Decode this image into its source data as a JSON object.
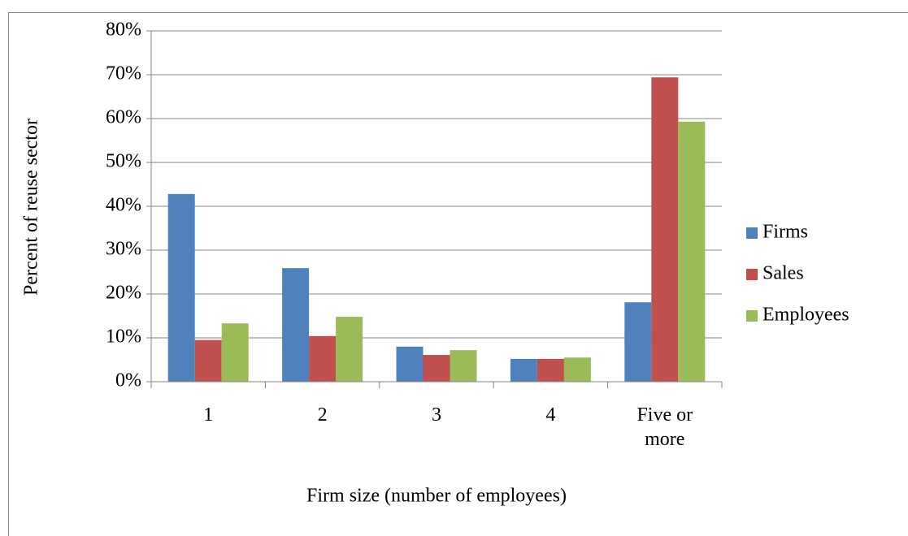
{
  "chart_data": {
    "type": "bar",
    "x_label": "Firm size (number of employees)",
    "y_label": "Percent of reuse sector",
    "categories": [
      "1",
      "2",
      "3",
      "4",
      "Five or more"
    ],
    "series": [
      {
        "name": "Firms",
        "color": "#4f81bd",
        "values": [
          42.8,
          25.9,
          8.0,
          5.2,
          18.1
        ]
      },
      {
        "name": "Sales",
        "color": "#c0504d",
        "values": [
          9.5,
          10.4,
          6.1,
          5.2,
          69.4
        ]
      },
      {
        "name": "Employees",
        "color": "#9bbb59",
        "values": [
          13.3,
          14.8,
          7.2,
          5.5,
          59.3
        ]
      }
    ],
    "ylim": [
      0,
      80
    ],
    "yticks": [
      {
        "value": 0,
        "label": "0%"
      },
      {
        "value": 10,
        "label": "10%"
      },
      {
        "value": 20,
        "label": "20%"
      },
      {
        "value": 30,
        "label": "30%"
      },
      {
        "value": 40,
        "label": "40%"
      },
      {
        "value": 50,
        "label": "50%"
      },
      {
        "value": 60,
        "label": "60%"
      },
      {
        "value": 70,
        "label": "70%"
      },
      {
        "value": 80,
        "label": "80%"
      }
    ],
    "grid": true,
    "legend": "right"
  }
}
